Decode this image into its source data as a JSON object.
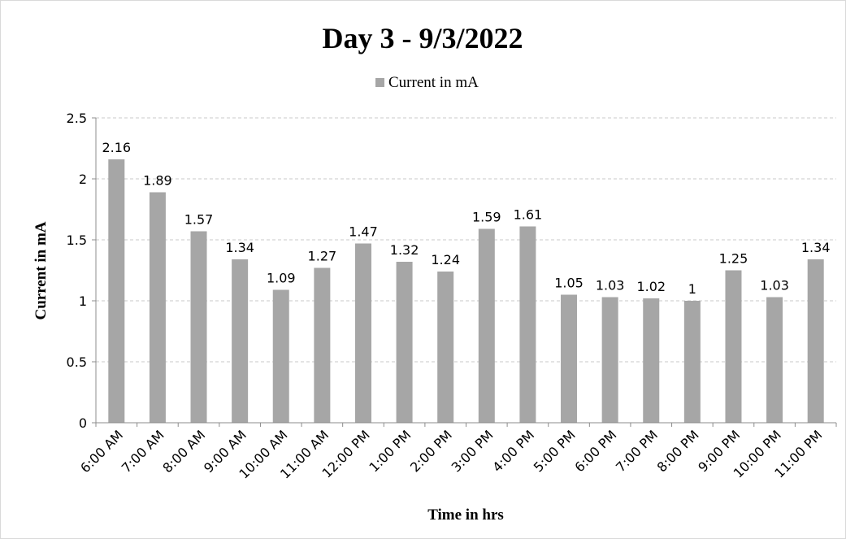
{
  "chart_data": {
    "type": "bar",
    "title": "Day 3 - 9/3/2022",
    "xlabel": "Time in hrs",
    "ylabel": "Current in mA",
    "legend": "top-center",
    "grid": true,
    "ylim": [
      0,
      2.5
    ],
    "yticks": [
      "0",
      "0.5",
      "1",
      "1.5",
      "2",
      "2.5"
    ],
    "categories": [
      "6:00 AM",
      "7:00 AM",
      "8:00 AM",
      "9:00 AM",
      "10:00 AM",
      "11:00 AM",
      "12:00 PM",
      "1:00 PM",
      "2:00 PM",
      "3:00 PM",
      "4:00 PM",
      "5:00 PM",
      "6:00 PM",
      "7:00 PM",
      "8:00 PM",
      "9:00 PM",
      "10:00 PM",
      "11:00 PM"
    ],
    "series": [
      {
        "name": "Current in mA",
        "color": "#a6a6a6",
        "values": [
          2.16,
          1.89,
          1.57,
          1.34,
          1.09,
          1.27,
          1.47,
          1.32,
          1.24,
          1.59,
          1.61,
          1.05,
          1.03,
          1.02,
          1,
          1.25,
          1.03,
          1.34
        ]
      }
    ]
  }
}
